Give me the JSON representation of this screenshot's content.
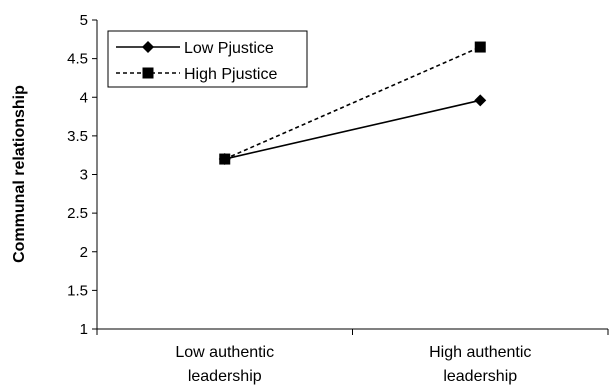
{
  "chart_data": {
    "type": "line",
    "categories": [
      [
        "Low authentic",
        "leadership"
      ],
      [
        "High authentic",
        "leadership"
      ]
    ],
    "series": [
      {
        "name": "Low Pjustice",
        "values": [
          3.2,
          3.96
        ],
        "marker": "diamond",
        "dash": "solid",
        "color": "#000000"
      },
      {
        "name": "High Pjustice",
        "values": [
          3.2,
          4.65
        ],
        "marker": "square",
        "dash": "dashed",
        "color": "#000000"
      }
    ],
    "ylabel": "Communal relationship",
    "xlabel": "",
    "ylim": [
      1,
      5
    ],
    "yticks": [
      "1",
      "1.5",
      "2",
      "2.5",
      "3",
      "3.5",
      "4",
      "4.5",
      "5"
    ],
    "grid": false,
    "legend": "top-left"
  }
}
